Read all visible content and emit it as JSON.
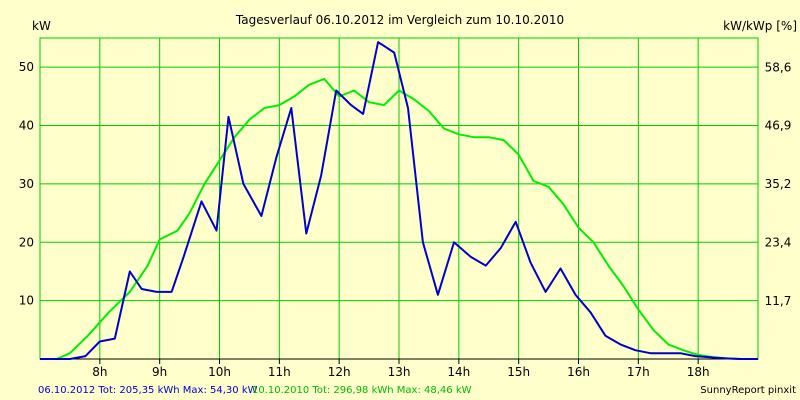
{
  "chart_data": {
    "type": "line",
    "title": "Tagesverlauf 06.10.2012 im Vergleich zum 10.10.2010",
    "ylabel_left": "kW",
    "ylabel_right": "kW/kWp [%]",
    "x_range": [
      7.0,
      19.0
    ],
    "x_ticks": [
      8,
      9,
      10,
      11,
      12,
      13,
      14,
      15,
      16,
      17,
      18
    ],
    "x_tick_labels": [
      "8h",
      "9h",
      "10h",
      "11h",
      "12h",
      "13h",
      "14h",
      "15h",
      "16h",
      "17h",
      "18h"
    ],
    "y_left_range": [
      0,
      55
    ],
    "y_left_ticks": [
      10,
      20,
      30,
      40,
      50
    ],
    "y_left_tick_labels": [
      "10",
      "20",
      "30",
      "40",
      "50"
    ],
    "y_right_range": [
      0,
      64.5
    ],
    "y_right_ticks": [
      11.7,
      23.4,
      35.2,
      46.9,
      58.6
    ],
    "y_right_tick_labels": [
      "11,7",
      "23,4",
      "35,2",
      "46,9",
      "58,6"
    ],
    "grid": true,
    "colors": {
      "background": "#ffffcc",
      "grid": "#00cc00",
      "series_2012": "#0000cc",
      "series_2010": "#00ee00"
    },
    "series": [
      {
        "name": "06.10.2012",
        "x": [
          7.0,
          7.28,
          7.5,
          7.76,
          8.0,
          8.25,
          8.5,
          8.7,
          8.95,
          9.2,
          9.4,
          9.7,
          9.95,
          10.15,
          10.4,
          10.7,
          10.95,
          11.2,
          11.45,
          11.7,
          11.95,
          12.2,
          12.4,
          12.65,
          12.92,
          13.15,
          13.4,
          13.65,
          13.92,
          14.2,
          14.45,
          14.7,
          14.95,
          15.2,
          15.45,
          15.7,
          15.95,
          16.2,
          16.45,
          16.7,
          16.95,
          17.2,
          17.45,
          17.7,
          17.95,
          18.2,
          18.45,
          18.7,
          19.0
        ],
        "y": [
          0,
          0,
          0,
          0.5,
          3,
          3.5,
          15,
          12,
          11.5,
          11.5,
          17.5,
          27,
          22,
          41.5,
          30,
          24.5,
          34.5,
          43,
          21.5,
          31.5,
          46,
          43.5,
          42,
          54.3,
          52.5,
          43,
          20,
          11,
          20,
          17.5,
          16,
          19,
          23.5,
          16.5,
          11.5,
          15.5,
          11,
          8,
          4,
          2.5,
          1.5,
          1,
          1,
          1,
          0.5,
          0.3,
          0.1,
          0,
          0
        ]
      },
      {
        "name": "10.10.2010",
        "x": [
          7.0,
          7.28,
          7.5,
          7.8,
          8.15,
          8.5,
          8.8,
          9.0,
          9.3,
          9.5,
          9.75,
          10.0,
          10.25,
          10.5,
          10.75,
          11.0,
          11.25,
          11.5,
          11.75,
          12.0,
          12.25,
          12.5,
          12.75,
          13.0,
          13.25,
          13.5,
          13.75,
          14.0,
          14.25,
          14.5,
          14.75,
          15.0,
          15.25,
          15.5,
          15.75,
          16.0,
          16.25,
          16.5,
          16.75,
          17.0,
          17.25,
          17.5,
          17.75,
          18.0,
          18.25,
          18.5,
          18.75,
          19.0
        ],
        "y": [
          0,
          0,
          1,
          4,
          8,
          11.5,
          16,
          20.5,
          22,
          25,
          30,
          34,
          38,
          41,
          43,
          43.5,
          45,
          47,
          48,
          45,
          46,
          44,
          43.5,
          46,
          44.5,
          42.5,
          39.5,
          38.5,
          38,
          38,
          37.5,
          35,
          30.5,
          29.5,
          26.5,
          22.5,
          20,
          16,
          12.5,
          8.5,
          5,
          2.5,
          1.5,
          0.7,
          0.3,
          0.1,
          0,
          0
        ]
      }
    ]
  },
  "footer": {
    "series_2012_text": "06.10.2012 Tot: 205,35 kWh Max: 54,30 kW",
    "series_2010_text": "10.10.2010 Tot: 296,98 kWh Max: 48,46 kW",
    "credit": "SunnyReport pinxit"
  }
}
